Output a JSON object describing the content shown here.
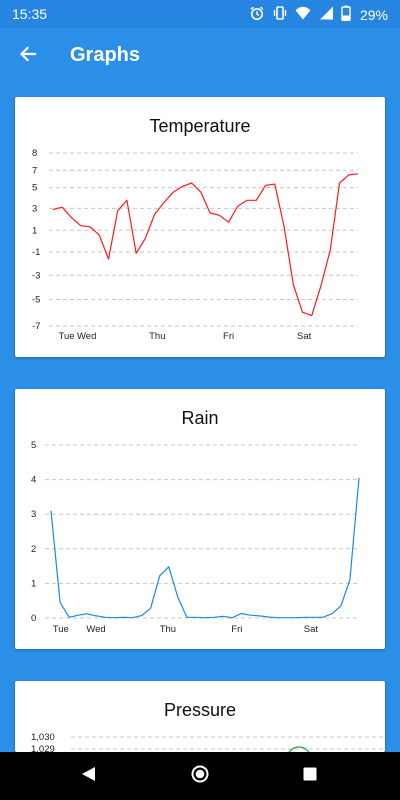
{
  "status_bar": {
    "time": "15:35",
    "battery": "29%"
  },
  "app_bar": {
    "title": "Graphs"
  },
  "colors": {
    "primary": "#2b8fe8",
    "status_bar": "#2585e0",
    "temperature": "#ff1a1a",
    "rain": "#1e88e5",
    "pressure": "#2e9e3c",
    "grid": "#c8c8c8"
  },
  "icons": [
    "alarm-icon",
    "vibrate-icon",
    "wifi-icon",
    "signal-icon",
    "battery-icon",
    "back-arrow-icon",
    "nav-back-icon",
    "nav-home-icon",
    "nav-recents-icon"
  ],
  "chart_data": [
    {
      "type": "line",
      "title": "Temperature",
      "xlabel": "",
      "ylabel": "",
      "ylim": [
        -7,
        8
      ],
      "yticks": [
        "8",
        "7",
        "5",
        "3",
        "1",
        "-1",
        "-3",
        "-5",
        "-7"
      ],
      "yticks_values": [
        8,
        6.5,
        5,
        3.2,
        1.3,
        -0.6,
        -2.6,
        -4.7,
        -7
      ],
      "xticks": [
        "Tue",
        "Wed",
        "Thu",
        "Fri",
        "Sat"
      ],
      "xticks_pos": [
        0.3,
        1.3,
        5.2,
        9.2,
        13.2
      ],
      "grid": true,
      "series": [
        {
          "x": [
            0,
            0.5,
            1,
            1.5,
            2,
            2.5,
            3,
            3.5,
            4,
            4.5,
            5,
            5.5,
            6,
            6.5,
            7,
            7.5,
            8,
            8.5,
            9,
            9.5,
            10,
            10.5,
            11,
            11.5,
            12,
            12.5,
            13,
            13.5,
            14,
            14.5,
            15,
            15.5,
            16,
            16.5
          ],
          "values": [
            3.1,
            3.3,
            2.4,
            1.7,
            1.6,
            0.9,
            -1.2,
            3.0,
            3.9,
            -0.7,
            0.6,
            2.7,
            3.7,
            4.6,
            5.1,
            5.4,
            4.6,
            2.8,
            2.6,
            2.0,
            3.4,
            3.9,
            3.9,
            5.2,
            5.3,
            1.6,
            -3.4,
            -5.8,
            -6.1,
            -3.5,
            -0.4,
            5.4,
            6.1,
            6.2
          ]
        }
      ]
    },
    {
      "type": "line",
      "title": "Rain",
      "xlabel": "",
      "ylabel": "",
      "ylim": [
        0,
        5
      ],
      "yticks": [
        "5",
        "4",
        "3",
        "2",
        "1",
        "0"
      ],
      "yticks_values": [
        5,
        4,
        3,
        2,
        1,
        0
      ],
      "xticks": [
        "Tue",
        "Wed",
        "Thu",
        "Fri",
        "Sat"
      ],
      "xticks_pos": [
        0.1,
        1.95,
        6.0,
        9.95,
        13.95
      ],
      "grid": true,
      "series": [
        {
          "x": [
            0,
            0.5,
            1,
            1.5,
            2,
            2.5,
            3,
            3.5,
            4,
            4.5,
            5,
            5.5,
            6,
            6.5,
            7,
            7.5,
            8,
            8.5,
            9,
            9.5,
            10,
            10.5,
            11,
            11.5,
            12,
            12.5,
            13,
            13.5,
            14,
            14.5,
            15,
            15.5,
            16,
            16.5,
            17
          ],
          "values": [
            3.1,
            0.45,
            0.02,
            0.08,
            0.12,
            0.06,
            0.02,
            0.01,
            0.02,
            0.01,
            0.07,
            0.28,
            1.22,
            1.48,
            0.6,
            0.02,
            0.02,
            0.01,
            0.02,
            0.05,
            0.01,
            0.13,
            0.08,
            0.06,
            0.03,
            0.01,
            0.01,
            0.01,
            0.02,
            0.02,
            0.02,
            0.12,
            0.35,
            1.1,
            4.05
          ]
        }
      ]
    },
    {
      "type": "line",
      "title": "Pressure",
      "xlabel": "",
      "ylabel": "",
      "yticks": [
        "1,030",
        "1,029"
      ],
      "grid": true,
      "series": [
        {
          "x": [],
          "values": []
        }
      ]
    }
  ]
}
